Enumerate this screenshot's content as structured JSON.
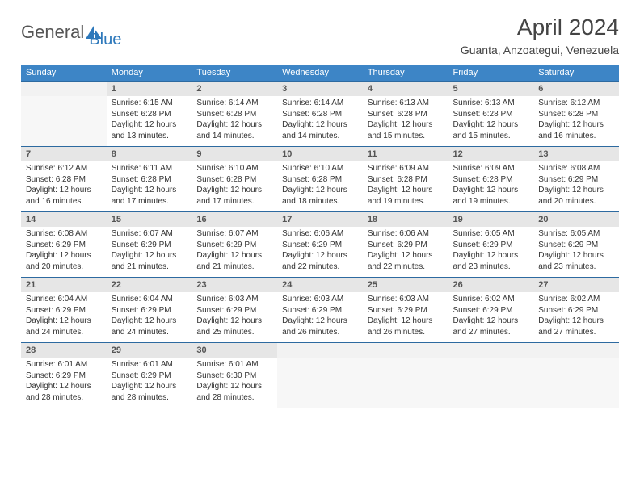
{
  "logo": {
    "part1": "General",
    "part2": "Blue"
  },
  "title": "April 2024",
  "location": "Guanta, Anzoategui, Venezuela",
  "colors": {
    "header_bg": "#3d85c6",
    "header_text": "#ffffff",
    "daynum_bg": "#e6e6e6",
    "accent": "#2d78bb"
  },
  "dow": [
    "Sunday",
    "Monday",
    "Tuesday",
    "Wednesday",
    "Thursday",
    "Friday",
    "Saturday"
  ],
  "weeks": [
    [
      null,
      {
        "n": "1",
        "sr": "6:15 AM",
        "ss": "6:28 PM",
        "dl": "12 hours and 13 minutes."
      },
      {
        "n": "2",
        "sr": "6:14 AM",
        "ss": "6:28 PM",
        "dl": "12 hours and 14 minutes."
      },
      {
        "n": "3",
        "sr": "6:14 AM",
        "ss": "6:28 PM",
        "dl": "12 hours and 14 minutes."
      },
      {
        "n": "4",
        "sr": "6:13 AM",
        "ss": "6:28 PM",
        "dl": "12 hours and 15 minutes."
      },
      {
        "n": "5",
        "sr": "6:13 AM",
        "ss": "6:28 PM",
        "dl": "12 hours and 15 minutes."
      },
      {
        "n": "6",
        "sr": "6:12 AM",
        "ss": "6:28 PM",
        "dl": "12 hours and 16 minutes."
      }
    ],
    [
      {
        "n": "7",
        "sr": "6:12 AM",
        "ss": "6:28 PM",
        "dl": "12 hours and 16 minutes."
      },
      {
        "n": "8",
        "sr": "6:11 AM",
        "ss": "6:28 PM",
        "dl": "12 hours and 17 minutes."
      },
      {
        "n": "9",
        "sr": "6:10 AM",
        "ss": "6:28 PM",
        "dl": "12 hours and 17 minutes."
      },
      {
        "n": "10",
        "sr": "6:10 AM",
        "ss": "6:28 PM",
        "dl": "12 hours and 18 minutes."
      },
      {
        "n": "11",
        "sr": "6:09 AM",
        "ss": "6:28 PM",
        "dl": "12 hours and 19 minutes."
      },
      {
        "n": "12",
        "sr": "6:09 AM",
        "ss": "6:28 PM",
        "dl": "12 hours and 19 minutes."
      },
      {
        "n": "13",
        "sr": "6:08 AM",
        "ss": "6:29 PM",
        "dl": "12 hours and 20 minutes."
      }
    ],
    [
      {
        "n": "14",
        "sr": "6:08 AM",
        "ss": "6:29 PM",
        "dl": "12 hours and 20 minutes."
      },
      {
        "n": "15",
        "sr": "6:07 AM",
        "ss": "6:29 PM",
        "dl": "12 hours and 21 minutes."
      },
      {
        "n": "16",
        "sr": "6:07 AM",
        "ss": "6:29 PM",
        "dl": "12 hours and 21 minutes."
      },
      {
        "n": "17",
        "sr": "6:06 AM",
        "ss": "6:29 PM",
        "dl": "12 hours and 22 minutes."
      },
      {
        "n": "18",
        "sr": "6:06 AM",
        "ss": "6:29 PM",
        "dl": "12 hours and 22 minutes."
      },
      {
        "n": "19",
        "sr": "6:05 AM",
        "ss": "6:29 PM",
        "dl": "12 hours and 23 minutes."
      },
      {
        "n": "20",
        "sr": "6:05 AM",
        "ss": "6:29 PM",
        "dl": "12 hours and 23 minutes."
      }
    ],
    [
      {
        "n": "21",
        "sr": "6:04 AM",
        "ss": "6:29 PM",
        "dl": "12 hours and 24 minutes."
      },
      {
        "n": "22",
        "sr": "6:04 AM",
        "ss": "6:29 PM",
        "dl": "12 hours and 24 minutes."
      },
      {
        "n": "23",
        "sr": "6:03 AM",
        "ss": "6:29 PM",
        "dl": "12 hours and 25 minutes."
      },
      {
        "n": "24",
        "sr": "6:03 AM",
        "ss": "6:29 PM",
        "dl": "12 hours and 26 minutes."
      },
      {
        "n": "25",
        "sr": "6:03 AM",
        "ss": "6:29 PM",
        "dl": "12 hours and 26 minutes."
      },
      {
        "n": "26",
        "sr": "6:02 AM",
        "ss": "6:29 PM",
        "dl": "12 hours and 27 minutes."
      },
      {
        "n": "27",
        "sr": "6:02 AM",
        "ss": "6:29 PM",
        "dl": "12 hours and 27 minutes."
      }
    ],
    [
      {
        "n": "28",
        "sr": "6:01 AM",
        "ss": "6:29 PM",
        "dl": "12 hours and 28 minutes."
      },
      {
        "n": "29",
        "sr": "6:01 AM",
        "ss": "6:29 PM",
        "dl": "12 hours and 28 minutes."
      },
      {
        "n": "30",
        "sr": "6:01 AM",
        "ss": "6:30 PM",
        "dl": "12 hours and 28 minutes."
      },
      null,
      null,
      null,
      null
    ]
  ],
  "labels": {
    "sunrise": "Sunrise:",
    "sunset": "Sunset:",
    "daylight": "Daylight:"
  }
}
